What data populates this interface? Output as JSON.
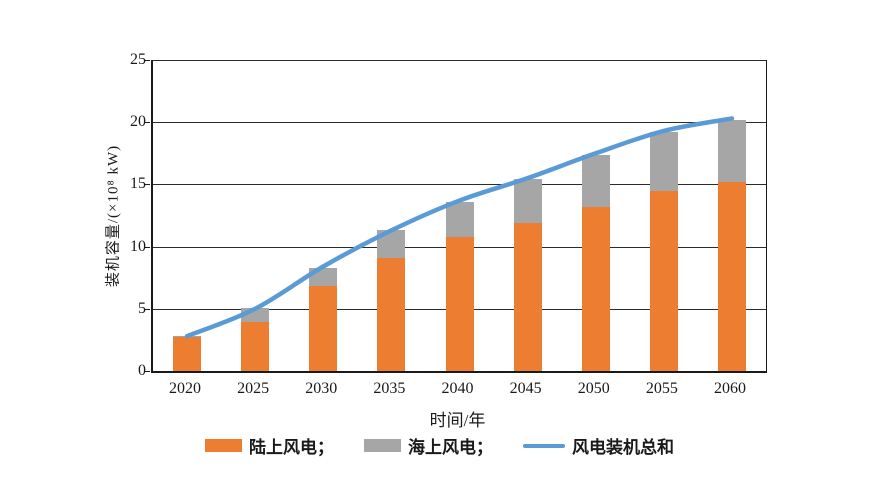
{
  "chart_data": {
    "type": "bar",
    "stacked": true,
    "categories": [
      "2020",
      "2025",
      "2030",
      "2035",
      "2040",
      "2045",
      "2050",
      "2055",
      "2060"
    ],
    "series": [
      {
        "name": "陆上风电",
        "render": "bar",
        "color": "#ED7D31",
        "values": [
          2.7,
          3.9,
          6.8,
          9.1,
          10.8,
          11.9,
          13.2,
          14.5,
          15.2
        ]
      },
      {
        "name": "海上风电",
        "render": "bar",
        "color": "#A6A6A6",
        "values": [
          0.1,
          1.2,
          1.5,
          2.2,
          2.8,
          3.5,
          4.2,
          4.7,
          5.0
        ]
      },
      {
        "name": "风电装机总和",
        "render": "line",
        "color": "#5B9BD5",
        "values": [
          2.8,
          5.0,
          8.4,
          11.3,
          13.7,
          15.5,
          17.5,
          19.3,
          20.3
        ]
      }
    ],
    "title": "",
    "xlabel": "时间/年",
    "ylabel": "装机容量/(×10⁸ kW)",
    "ylim": [
      0,
      25
    ],
    "yticks": [
      0,
      5,
      10,
      15,
      20,
      25
    ],
    "grid": true,
    "legend_position": "bottom"
  },
  "legend": {
    "items": [
      {
        "label": "陆上风电；",
        "swatch": "bar",
        "color": "#ED7D31"
      },
      {
        "label": "海上风电；",
        "swatch": "bar",
        "color": "#A6A6A6"
      },
      {
        "label": "风电装机总和",
        "swatch": "line",
        "color": "#5B9BD5"
      }
    ]
  },
  "colors": {
    "onshore": "#ED7D31",
    "offshore": "#A6A6A6",
    "total_line": "#5B9BD5",
    "axis": "#1a1a1a",
    "grid": "#2b2b2b",
    "background": "#ffffff"
  }
}
